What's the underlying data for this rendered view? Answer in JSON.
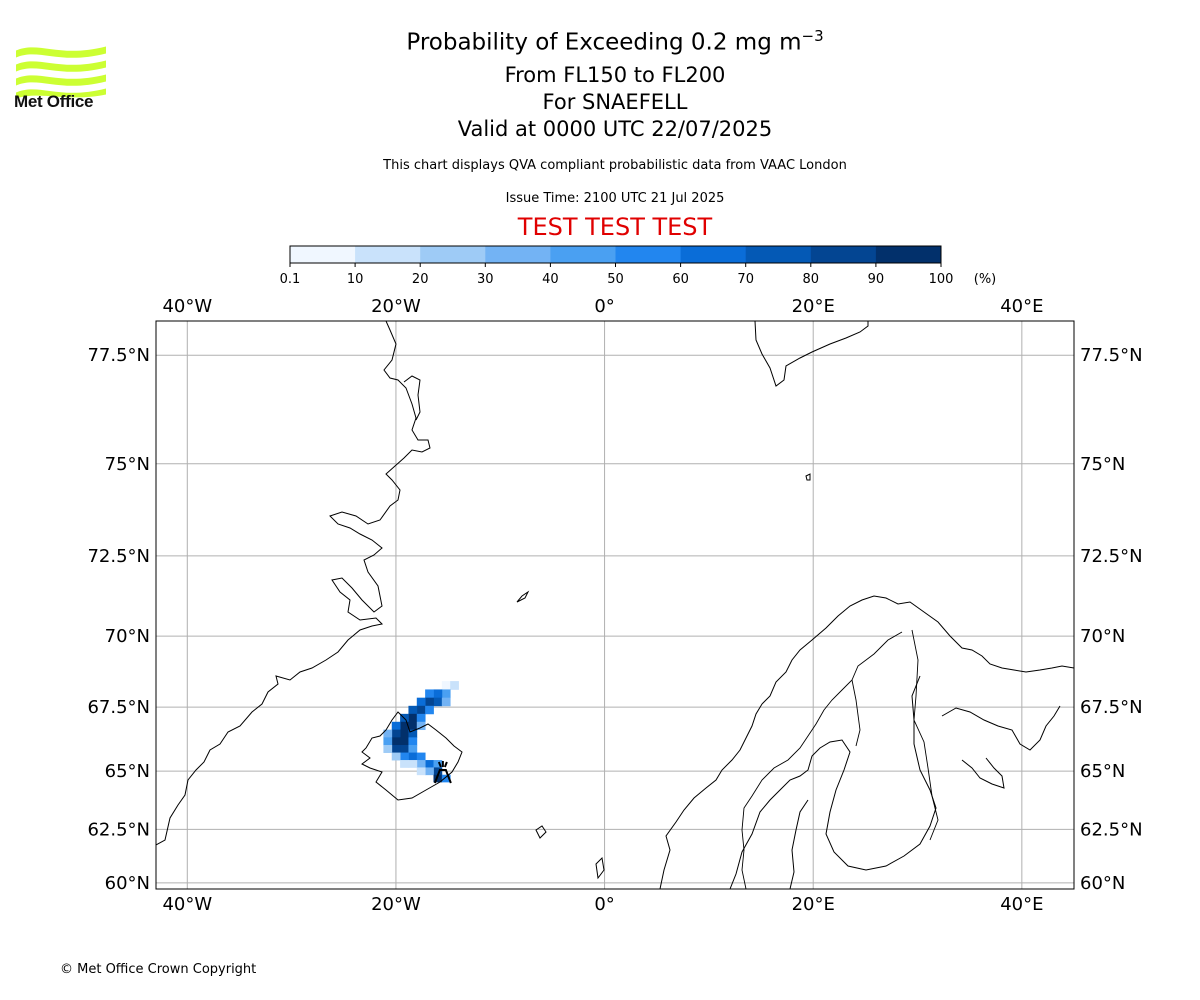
{
  "header": {
    "logo_text": "Met Office",
    "logo_icon": "met-office-waves-icon",
    "logo_color": "#ccff33",
    "title_main": "Probability of Exceeding 0.2 mg m",
    "title_sup": "−3",
    "flight_levels": "From FL150 to FL200",
    "volcano": "For SNAEFELL",
    "valid_time": "Valid at 0000 UTC 22/07/2025",
    "disclaimer": "This chart displays QVA compliant probabilistic data from VAAC London",
    "issue_time": "Issue Time: 2100 UTC 21 Jul 2025",
    "test_banner": "TEST TEST TEST",
    "test_color": "#e00000"
  },
  "colorbar": {
    "unit": "(%)",
    "ticks": [
      "0.1",
      "10",
      "20",
      "30",
      "40",
      "50",
      "60",
      "70",
      "80",
      "90",
      "100"
    ],
    "colors": [
      "#f0f7ff",
      "#c9e2fb",
      "#9ecbf6",
      "#73b3f4",
      "#4aa0f2",
      "#2286ef",
      "#0a6dd8",
      "#0459b5",
      "#034592",
      "#02306b"
    ]
  },
  "map": {
    "lon_range": [
      -43,
      45
    ],
    "lat_range": [
      59.7,
      78.2
    ],
    "lon_ticks": [
      {
        "value": -40,
        "label": "40°W"
      },
      {
        "value": -20,
        "label": "20°W"
      },
      {
        "value": 0,
        "label": "0°"
      },
      {
        "value": 20,
        "label": "20°E"
      },
      {
        "value": 40,
        "label": "40°E"
      }
    ],
    "lat_ticks": [
      {
        "value": 77.5,
        "label": "77.5°N"
      },
      {
        "value": 75,
        "label": "75°N"
      },
      {
        "value": 72.5,
        "label": "72.5°N"
      },
      {
        "value": 70,
        "label": "70°N"
      },
      {
        "value": 67.5,
        "label": "67.5°N"
      },
      {
        "value": 65,
        "label": "65°N"
      },
      {
        "value": 62.5,
        "label": "62.5°N"
      },
      {
        "value": 60,
        "label": "60°N"
      }
    ],
    "grid": true,
    "volcano_marker": {
      "name": "volcano-icon",
      "lon": -15.5,
      "lat": 64.8
    },
    "plume": [
      {
        "lon": -15.2,
        "lat": 68.3,
        "p": 5
      },
      {
        "lon": -14.4,
        "lat": 68.3,
        "p": 15
      },
      {
        "lon": -15.2,
        "lat": 68.0,
        "p": 45
      },
      {
        "lon": -16.0,
        "lat": 68.0,
        "p": 65
      },
      {
        "lon": -16.8,
        "lat": 68.0,
        "p": 55
      },
      {
        "lon": -16.0,
        "lat": 67.7,
        "p": 75
      },
      {
        "lon": -16.8,
        "lat": 67.7,
        "p": 85
      },
      {
        "lon": -17.6,
        "lat": 67.7,
        "p": 65
      },
      {
        "lon": -15.2,
        "lat": 67.7,
        "p": 35
      },
      {
        "lon": -17.6,
        "lat": 67.4,
        "p": 85
      },
      {
        "lon": -18.4,
        "lat": 67.4,
        "p": 75
      },
      {
        "lon": -16.8,
        "lat": 67.4,
        "p": 55
      },
      {
        "lon": -18.4,
        "lat": 67.1,
        "p": 95
      },
      {
        "lon": -19.2,
        "lat": 67.1,
        "p": 75
      },
      {
        "lon": -17.6,
        "lat": 67.1,
        "p": 55
      },
      {
        "lon": -18.4,
        "lat": 66.8,
        "p": 95
      },
      {
        "lon": -19.2,
        "lat": 66.8,
        "p": 95
      },
      {
        "lon": -20.0,
        "lat": 66.8,
        "p": 65
      },
      {
        "lon": -17.6,
        "lat": 66.8,
        "p": 35
      },
      {
        "lon": -19.2,
        "lat": 66.5,
        "p": 95
      },
      {
        "lon": -20.0,
        "lat": 66.5,
        "p": 85
      },
      {
        "lon": -18.4,
        "lat": 66.5,
        "p": 75
      },
      {
        "lon": -20.8,
        "lat": 66.5,
        "p": 35
      },
      {
        "lon": -19.2,
        "lat": 66.2,
        "p": 95
      },
      {
        "lon": -20.0,
        "lat": 66.2,
        "p": 95
      },
      {
        "lon": -18.4,
        "lat": 66.2,
        "p": 55
      },
      {
        "lon": -20.8,
        "lat": 66.2,
        "p": 45
      },
      {
        "lon": -19.2,
        "lat": 65.9,
        "p": 85
      },
      {
        "lon": -20.0,
        "lat": 65.9,
        "p": 85
      },
      {
        "lon": -18.4,
        "lat": 65.9,
        "p": 45
      },
      {
        "lon": -20.8,
        "lat": 65.9,
        "p": 25
      },
      {
        "lon": -18.4,
        "lat": 65.6,
        "p": 65
      },
      {
        "lon": -17.6,
        "lat": 65.6,
        "p": 55
      },
      {
        "lon": -19.2,
        "lat": 65.6,
        "p": 55
      },
      {
        "lon": -20.0,
        "lat": 65.6,
        "p": 25
      },
      {
        "lon": -16.8,
        "lat": 65.3,
        "p": 65
      },
      {
        "lon": -17.6,
        "lat": 65.3,
        "p": 35
      },
      {
        "lon": -16.0,
        "lat": 65.3,
        "p": 45
      },
      {
        "lon": -19.2,
        "lat": 65.3,
        "p": 15
      },
      {
        "lon": -18.4,
        "lat": 65.3,
        "p": 15
      },
      {
        "lon": -16.0,
        "lat": 65.0,
        "p": 85
      },
      {
        "lon": -16.8,
        "lat": 65.0,
        "p": 35
      },
      {
        "lon": -17.6,
        "lat": 65.0,
        "p": 15
      },
      {
        "lon": -16.0,
        "lat": 64.7,
        "p": 95
      },
      {
        "lon": -15.2,
        "lat": 64.7,
        "p": 55
      }
    ]
  },
  "footer": {
    "copyright": "© Met Office Crown Copyright"
  }
}
